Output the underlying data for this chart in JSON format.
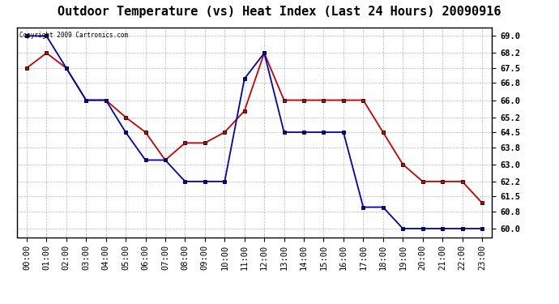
{
  "title": "Outdoor Temperature (vs) Heat Index (Last 24 Hours) 20090916",
  "copyright_text": "Copyright 2009 Cartronics.com",
  "hours": [
    0,
    1,
    2,
    3,
    4,
    5,
    6,
    7,
    8,
    9,
    10,
    11,
    12,
    13,
    14,
    15,
    16,
    17,
    18,
    19,
    20,
    21,
    22,
    23
  ],
  "hour_labels": [
    "00:00",
    "01:00",
    "02:00",
    "03:00",
    "04:00",
    "05:00",
    "06:00",
    "07:00",
    "08:00",
    "09:00",
    "10:00",
    "11:00",
    "12:00",
    "13:00",
    "14:00",
    "15:00",
    "16:00",
    "17:00",
    "18:00",
    "19:00",
    "20:00",
    "21:00",
    "22:00",
    "23:00"
  ],
  "blue_temp": [
    69.0,
    69.0,
    67.5,
    66.0,
    66.0,
    64.5,
    63.2,
    63.2,
    62.2,
    62.2,
    62.2,
    67.0,
    68.2,
    64.5,
    64.5,
    64.5,
    64.5,
    61.0,
    61.0,
    60.0,
    60.0,
    60.0,
    60.0,
    60.0
  ],
  "red_heat": [
    67.5,
    68.2,
    67.5,
    66.0,
    66.0,
    65.2,
    64.5,
    63.2,
    64.0,
    64.0,
    64.5,
    65.5,
    68.2,
    66.0,
    66.0,
    66.0,
    66.0,
    66.0,
    64.5,
    63.0,
    62.2,
    62.2,
    62.2,
    61.2
  ],
  "ylim_min": 59.6,
  "ylim_max": 69.4,
  "yticks": [
    60.0,
    60.8,
    61.5,
    62.2,
    63.0,
    63.8,
    64.5,
    65.2,
    66.0,
    66.8,
    67.5,
    68.2,
    69.0
  ],
  "blue_color": "#0000bb",
  "red_color": "#cc0000",
  "bg_color": "#ffffff",
  "plot_bg": "#ffffff",
  "grid_color": "#999999",
  "title_fontsize": 11,
  "tick_fontsize": 7.5,
  "fig_width": 6.9,
  "fig_height": 3.75,
  "dpi": 100
}
